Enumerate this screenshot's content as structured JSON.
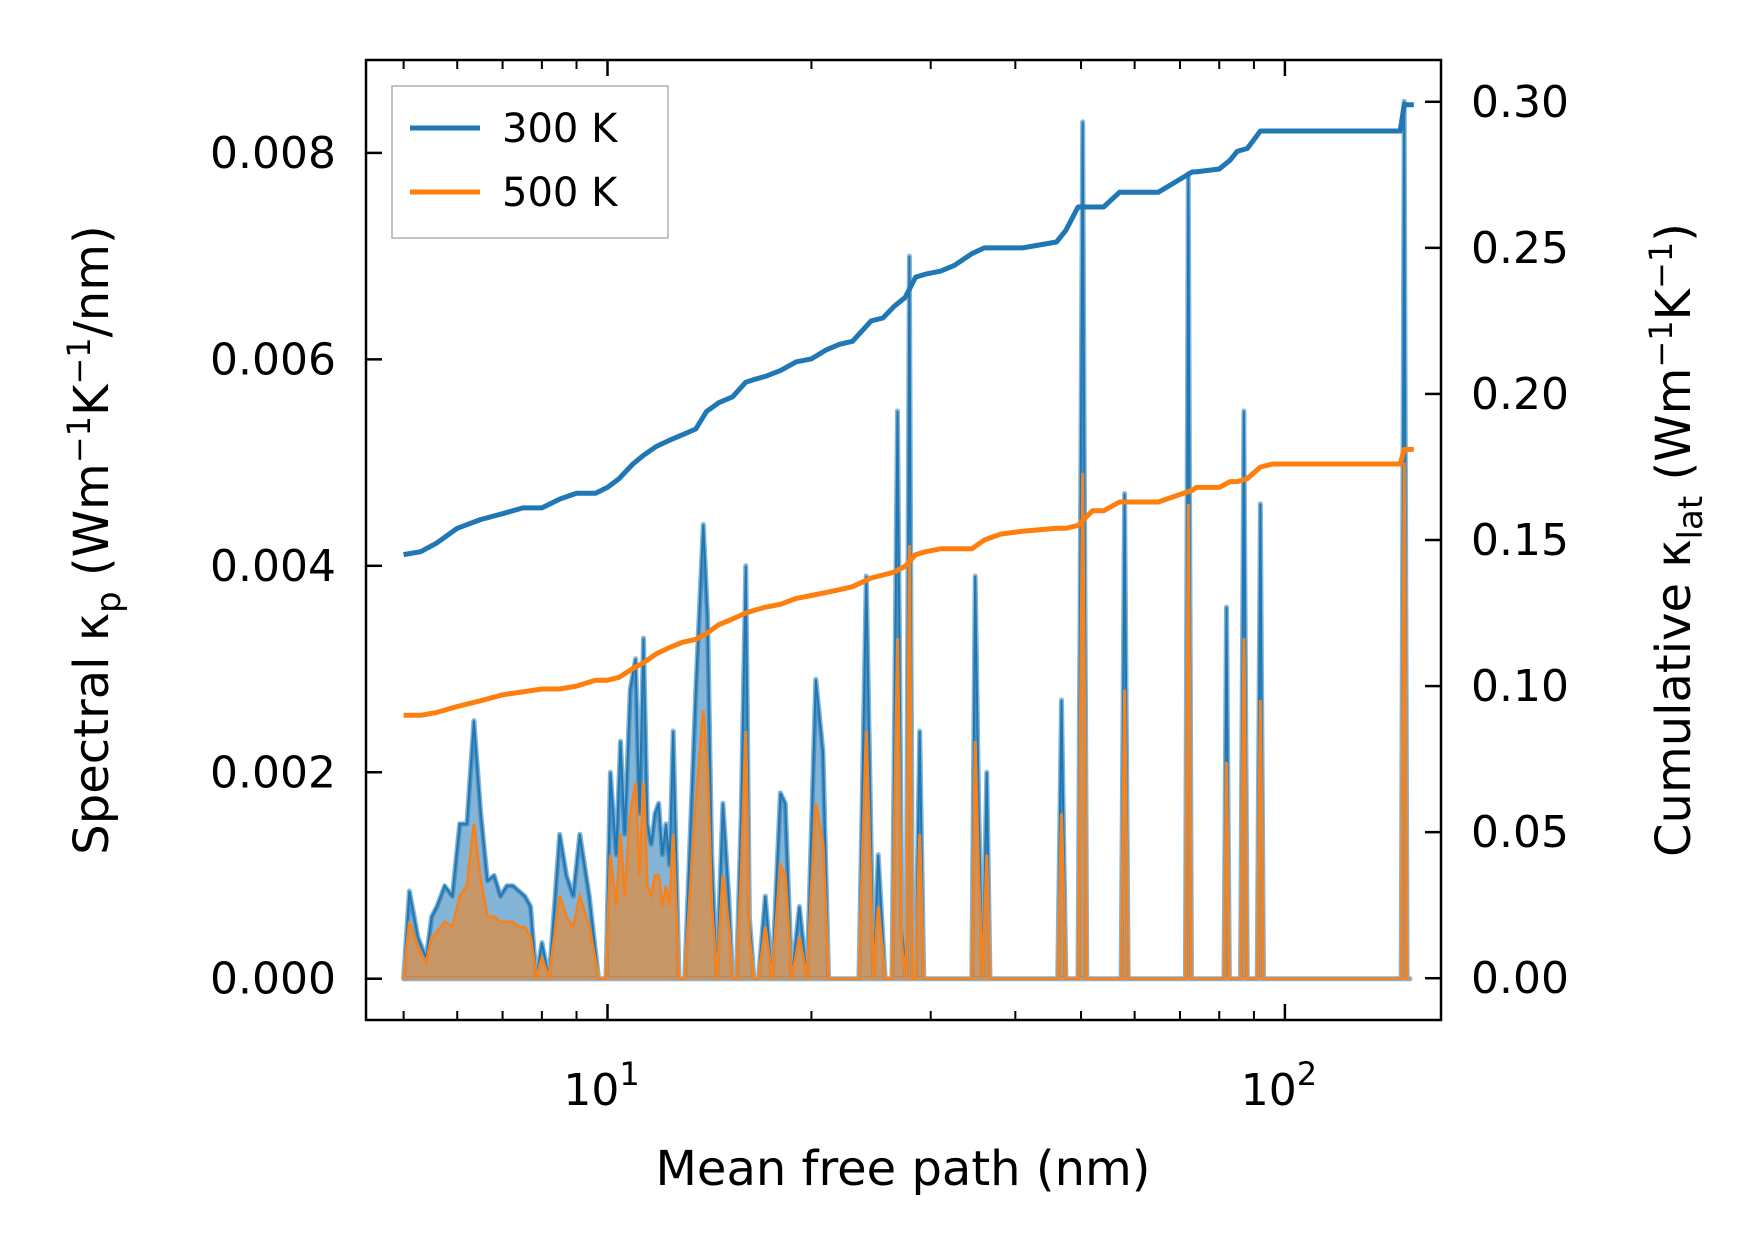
{
  "chart_data": {
    "type": "line",
    "xscale": "log",
    "xlabel": "Mean free path (nm)",
    "xlim": [
      4.4,
      170
    ],
    "xticks": [
      {
        "value": 10,
        "base": "10",
        "exp": "1"
      },
      {
        "value": 100,
        "base": "10",
        "exp": "2"
      }
    ],
    "ylabel_left": {
      "main": "Spectral κ",
      "sub": "p",
      "unit_pre": " (Wm",
      "sup1": "−1",
      "mid": "K",
      "sup2": "−1",
      "unit_post": "/nm)"
    },
    "ylim_left": [
      -0.0004,
      0.0089
    ],
    "yticks_left": [
      "0.000",
      "0.002",
      "0.004",
      "0.006",
      "0.008"
    ],
    "ylabel_right": {
      "main": "Cumulative κ",
      "sub": "lat",
      "unit_pre": " (Wm",
      "sup1": "−1",
      "mid": "K",
      "sup2": "−1",
      "unit_post": ")"
    },
    "ylim_right": [
      -0.0143,
      0.3143
    ],
    "yticks_right": [
      "0.00",
      "0.05",
      "0.10",
      "0.15",
      "0.20",
      "0.25",
      "0.30"
    ],
    "legend": {
      "position": "top-left",
      "entries": [
        "300 K",
        "500 K"
      ]
    },
    "colors": {
      "300 K": "#1f77b4",
      "500 K": "#ff7f0e"
    },
    "series": [
      {
        "name": "300 K",
        "axis": "right",
        "cumulative": {
          "x": [
            5.0,
            5.3,
            5.6,
            6.0,
            6.5,
            7.0,
            7.5,
            8.0,
            8.5,
            9.0,
            9.6,
            10.0,
            10.4,
            10.9,
            11.3,
            11.8,
            12.3,
            12.9,
            13.5,
            14.0,
            14.6,
            15.3,
            16.0,
            16.5,
            17.1,
            18.0,
            19.0,
            20.0,
            21.0,
            22.0,
            23.0,
            24.5,
            25.5,
            26.5,
            27.5,
            28.5,
            29.5,
            31.0,
            32.5,
            34.5,
            36.0,
            38.0,
            41.0,
            46.0,
            47.5,
            49.5,
            52.0,
            54.0,
            57.0,
            60.0,
            65.0,
            73.0,
            74.0,
            80.0,
            83.0,
            85.0,
            88.0,
            92.0,
            96.0,
            110.0,
            130.0,
            148.0,
            150.0,
            155.0
          ],
          "y": [
            0.145,
            0.146,
            0.149,
            0.154,
            0.157,
            0.159,
            0.161,
            0.161,
            0.164,
            0.166,
            0.166,
            0.168,
            0.171,
            0.176,
            0.179,
            0.182,
            0.184,
            0.186,
            0.188,
            0.194,
            0.197,
            0.199,
            0.204,
            0.205,
            0.206,
            0.208,
            0.211,
            0.212,
            0.215,
            0.217,
            0.218,
            0.225,
            0.226,
            0.23,
            0.233,
            0.24,
            0.241,
            0.242,
            0.244,
            0.248,
            0.25,
            0.25,
            0.25,
            0.252,
            0.256,
            0.264,
            0.264,
            0.264,
            0.269,
            0.269,
            0.269,
            0.276,
            0.276,
            0.277,
            0.28,
            0.283,
            0.284,
            0.29,
            0.29,
            0.29,
            0.29,
            0.29,
            0.299,
            0.299
          ]
        },
        "spectral": {
          "x": [
            5.0,
            5.1,
            5.25,
            5.4,
            5.5,
            5.6,
            5.75,
            5.9,
            6.05,
            6.2,
            6.35,
            6.5,
            6.65,
            6.8,
            6.95,
            7.1,
            7.25,
            7.4,
            7.55,
            7.7,
            7.85,
            8.0,
            8.2,
            8.5,
            8.7,
            8.9,
            9.1,
            9.4,
            9.7,
            9.95,
            10.1,
            10.3,
            10.45,
            10.6,
            10.8,
            11.0,
            11.15,
            11.3,
            11.45,
            11.6,
            11.75,
            11.9,
            12.05,
            12.2,
            12.35,
            12.5,
            12.75,
            13.0,
            13.5,
            13.85,
            14.05,
            14.25,
            14.5,
            14.8,
            15.1,
            15.3,
            15.5,
            15.75,
            16.0,
            16.2,
            16.45,
            16.7,
            17.1,
            17.5,
            18.0,
            18.3,
            18.7,
            19.2,
            19.7,
            20.3,
            20.8,
            21.2,
            21.6,
            22.1,
            22.8,
            23.5,
            24.1,
            24.7,
            25.1,
            25.7,
            26.3,
            26.8,
            27.2,
            27.6,
            27.9,
            28.2,
            28.5,
            28.9,
            29.3,
            29.8,
            30.2,
            30.7,
            32.0,
            33.5,
            34.5,
            34.9,
            35.3,
            35.8,
            36.3,
            36.7,
            38.0,
            40.0,
            43.0,
            45.0,
            46.2,
            46.8,
            47.5,
            48.5,
            49.5,
            50.3,
            51.0,
            51.7,
            53.0,
            56.0,
            57.3,
            58.0,
            58.7,
            61.0,
            66.0,
            70.0,
            71.3,
            72.0,
            72.8,
            75.0,
            80.0,
            81.3,
            82.0,
            82.8,
            84.5,
            86.0,
            87.0,
            88.0,
            89.0,
            90.0,
            91.0,
            92.0,
            93.0,
            94.5,
            100.0,
            120.0,
            147.0,
            148.5,
            150.0,
            151.5,
            153.0
          ],
          "v300": [
            0.0,
            0.00085,
            0.0004,
            0.0002,
            0.0006,
            0.0007,
            0.0009,
            0.0008,
            0.0015,
            0.0015,
            0.0025,
            0.0016,
            0.00095,
            0.001,
            0.0008,
            0.0009,
            0.0009,
            0.00085,
            0.0008,
            0.0007,
            0.0,
            0.00035,
            0.0,
            0.0014,
            0.001,
            0.0008,
            0.0014,
            0.0008,
            0.0,
            0.0,
            0.002,
            0.0012,
            0.0023,
            0.0014,
            0.0028,
            0.0031,
            0.0016,
            0.0033,
            0.0015,
            0.0013,
            0.0016,
            0.0017,
            0.0012,
            0.0015,
            0.0011,
            0.0024,
            0.0,
            0.0,
            0.0028,
            0.0044,
            0.0035,
            0.0012,
            0.0,
            0.0017,
            0.0008,
            0.0,
            0.0,
            0.0016,
            0.004,
            0.0006,
            0.0,
            0.0,
            0.0008,
            0.0,
            0.0018,
            0.0017,
            0.0,
            0.0007,
            0.0,
            0.0029,
            0.0022,
            0.0,
            0.0,
            0.0,
            0.0,
            0.0,
            0.0039,
            0.0,
            0.0012,
            0.0,
            0.0,
            0.0055,
            0.0005,
            0.0,
            0.007,
            0.0,
            0.0,
            0.0024,
            0.0,
            0.0,
            0.0,
            0.0,
            0.0,
            0.0,
            0.0,
            0.0039,
            0.0017,
            0.0,
            0.002,
            0.0,
            0.0,
            0.0,
            0.0,
            0.0,
            0.0,
            0.0027,
            0.0,
            0.0,
            0.0,
            0.0083,
            0.0,
            0.0,
            0.0,
            0.0,
            0.0,
            0.0047,
            0.0,
            0.0,
            0.0,
            0.0,
            0.0,
            0.0078,
            0.0,
            0.0,
            0.0,
            0.0,
            0.0036,
            0.0,
            0.0,
            0.0,
            0.0055,
            0.0,
            0.0,
            0.0,
            0.0,
            0.0046,
            0.0,
            0.0,
            0.0,
            0.0,
            0.0,
            0.0,
            0.0085,
            0.0,
            0.0
          ],
          "v500": [
            0.0,
            0.00055,
            0.0003,
            0.00015,
            0.0004,
            0.00045,
            0.00055,
            0.0005,
            0.0008,
            0.0009,
            0.0015,
            0.00095,
            0.0006,
            0.0006,
            0.00055,
            0.00055,
            0.00055,
            0.0005,
            0.0005,
            0.0004,
            0.0,
            0.0002,
            0.0,
            0.0008,
            0.0006,
            0.0005,
            0.0008,
            0.0005,
            0.0,
            0.0,
            0.0012,
            0.0007,
            0.0014,
            0.0008,
            0.0016,
            0.0019,
            0.001,
            0.0019,
            0.0009,
            0.0008,
            0.001,
            0.001,
            0.0007,
            0.0009,
            0.0007,
            0.0014,
            0.0,
            0.0,
            0.0017,
            0.0026,
            0.002,
            0.0007,
            0.0,
            0.001,
            0.0005,
            0.0,
            0.0,
            0.001,
            0.0024,
            0.0004,
            0.0,
            0.0,
            0.0005,
            0.0,
            0.0011,
            0.001,
            0.0,
            0.0004,
            0.0,
            0.0017,
            0.0013,
            0.0,
            0.0,
            0.0,
            0.0,
            0.0,
            0.0024,
            0.0,
            0.0007,
            0.0,
            0.0,
            0.0033,
            0.0003,
            0.0,
            0.0042,
            0.0,
            0.0,
            0.0014,
            0.0,
            0.0,
            0.0,
            0.0,
            0.0,
            0.0,
            0.0,
            0.0023,
            0.001,
            0.0,
            0.0012,
            0.0,
            0.0,
            0.0,
            0.0,
            0.0,
            0.0,
            0.0016,
            0.0,
            0.0,
            0.0,
            0.0049,
            0.0,
            0.0,
            0.0,
            0.0,
            0.0,
            0.0028,
            0.0,
            0.0,
            0.0,
            0.0,
            0.0,
            0.0046,
            0.0,
            0.0,
            0.0,
            0.0,
            0.0021,
            0.0,
            0.0,
            0.0,
            0.0033,
            0.0,
            0.0,
            0.0,
            0.0,
            0.0027,
            0.0,
            0.0,
            0.0,
            0.0,
            0.0,
            0.0,
            0.005,
            0.0,
            0.0
          ]
        }
      },
      {
        "name": "500 K",
        "axis": "right",
        "cumulative": {
          "x": [
            5.0,
            5.3,
            5.6,
            6.0,
            6.5,
            7.0,
            7.5,
            8.0,
            8.5,
            9.0,
            9.6,
            10.0,
            10.4,
            10.9,
            11.3,
            11.8,
            12.3,
            12.9,
            13.5,
            14.0,
            14.6,
            15.3,
            16.0,
            16.5,
            17.1,
            18.0,
            19.0,
            20.0,
            21.0,
            22.0,
            23.0,
            24.5,
            25.5,
            26.5,
            27.5,
            28.5,
            29.5,
            31.0,
            32.5,
            34.5,
            36.0,
            38.0,
            41.0,
            46.0,
            47.5,
            49.5,
            52.0,
            54.0,
            57.0,
            60.0,
            65.0,
            73.0,
            74.0,
            80.0,
            83.0,
            85.0,
            88.0,
            92.0,
            96.0,
            110.0,
            130.0,
            148.0,
            150.0,
            155.0
          ],
          "y": [
            0.09,
            0.09,
            0.091,
            0.093,
            0.095,
            0.097,
            0.098,
            0.099,
            0.099,
            0.1,
            0.102,
            0.102,
            0.103,
            0.106,
            0.108,
            0.111,
            0.113,
            0.115,
            0.116,
            0.118,
            0.121,
            0.123,
            0.125,
            0.126,
            0.127,
            0.128,
            0.13,
            0.131,
            0.132,
            0.133,
            0.134,
            0.137,
            0.138,
            0.139,
            0.141,
            0.145,
            0.146,
            0.147,
            0.147,
            0.147,
            0.15,
            0.152,
            0.153,
            0.154,
            0.154,
            0.155,
            0.16,
            0.16,
            0.163,
            0.163,
            0.163,
            0.167,
            0.168,
            0.168,
            0.17,
            0.17,
            0.171,
            0.175,
            0.176,
            0.176,
            0.176,
            0.176,
            0.181,
            0.181
          ]
        }
      }
    ]
  }
}
